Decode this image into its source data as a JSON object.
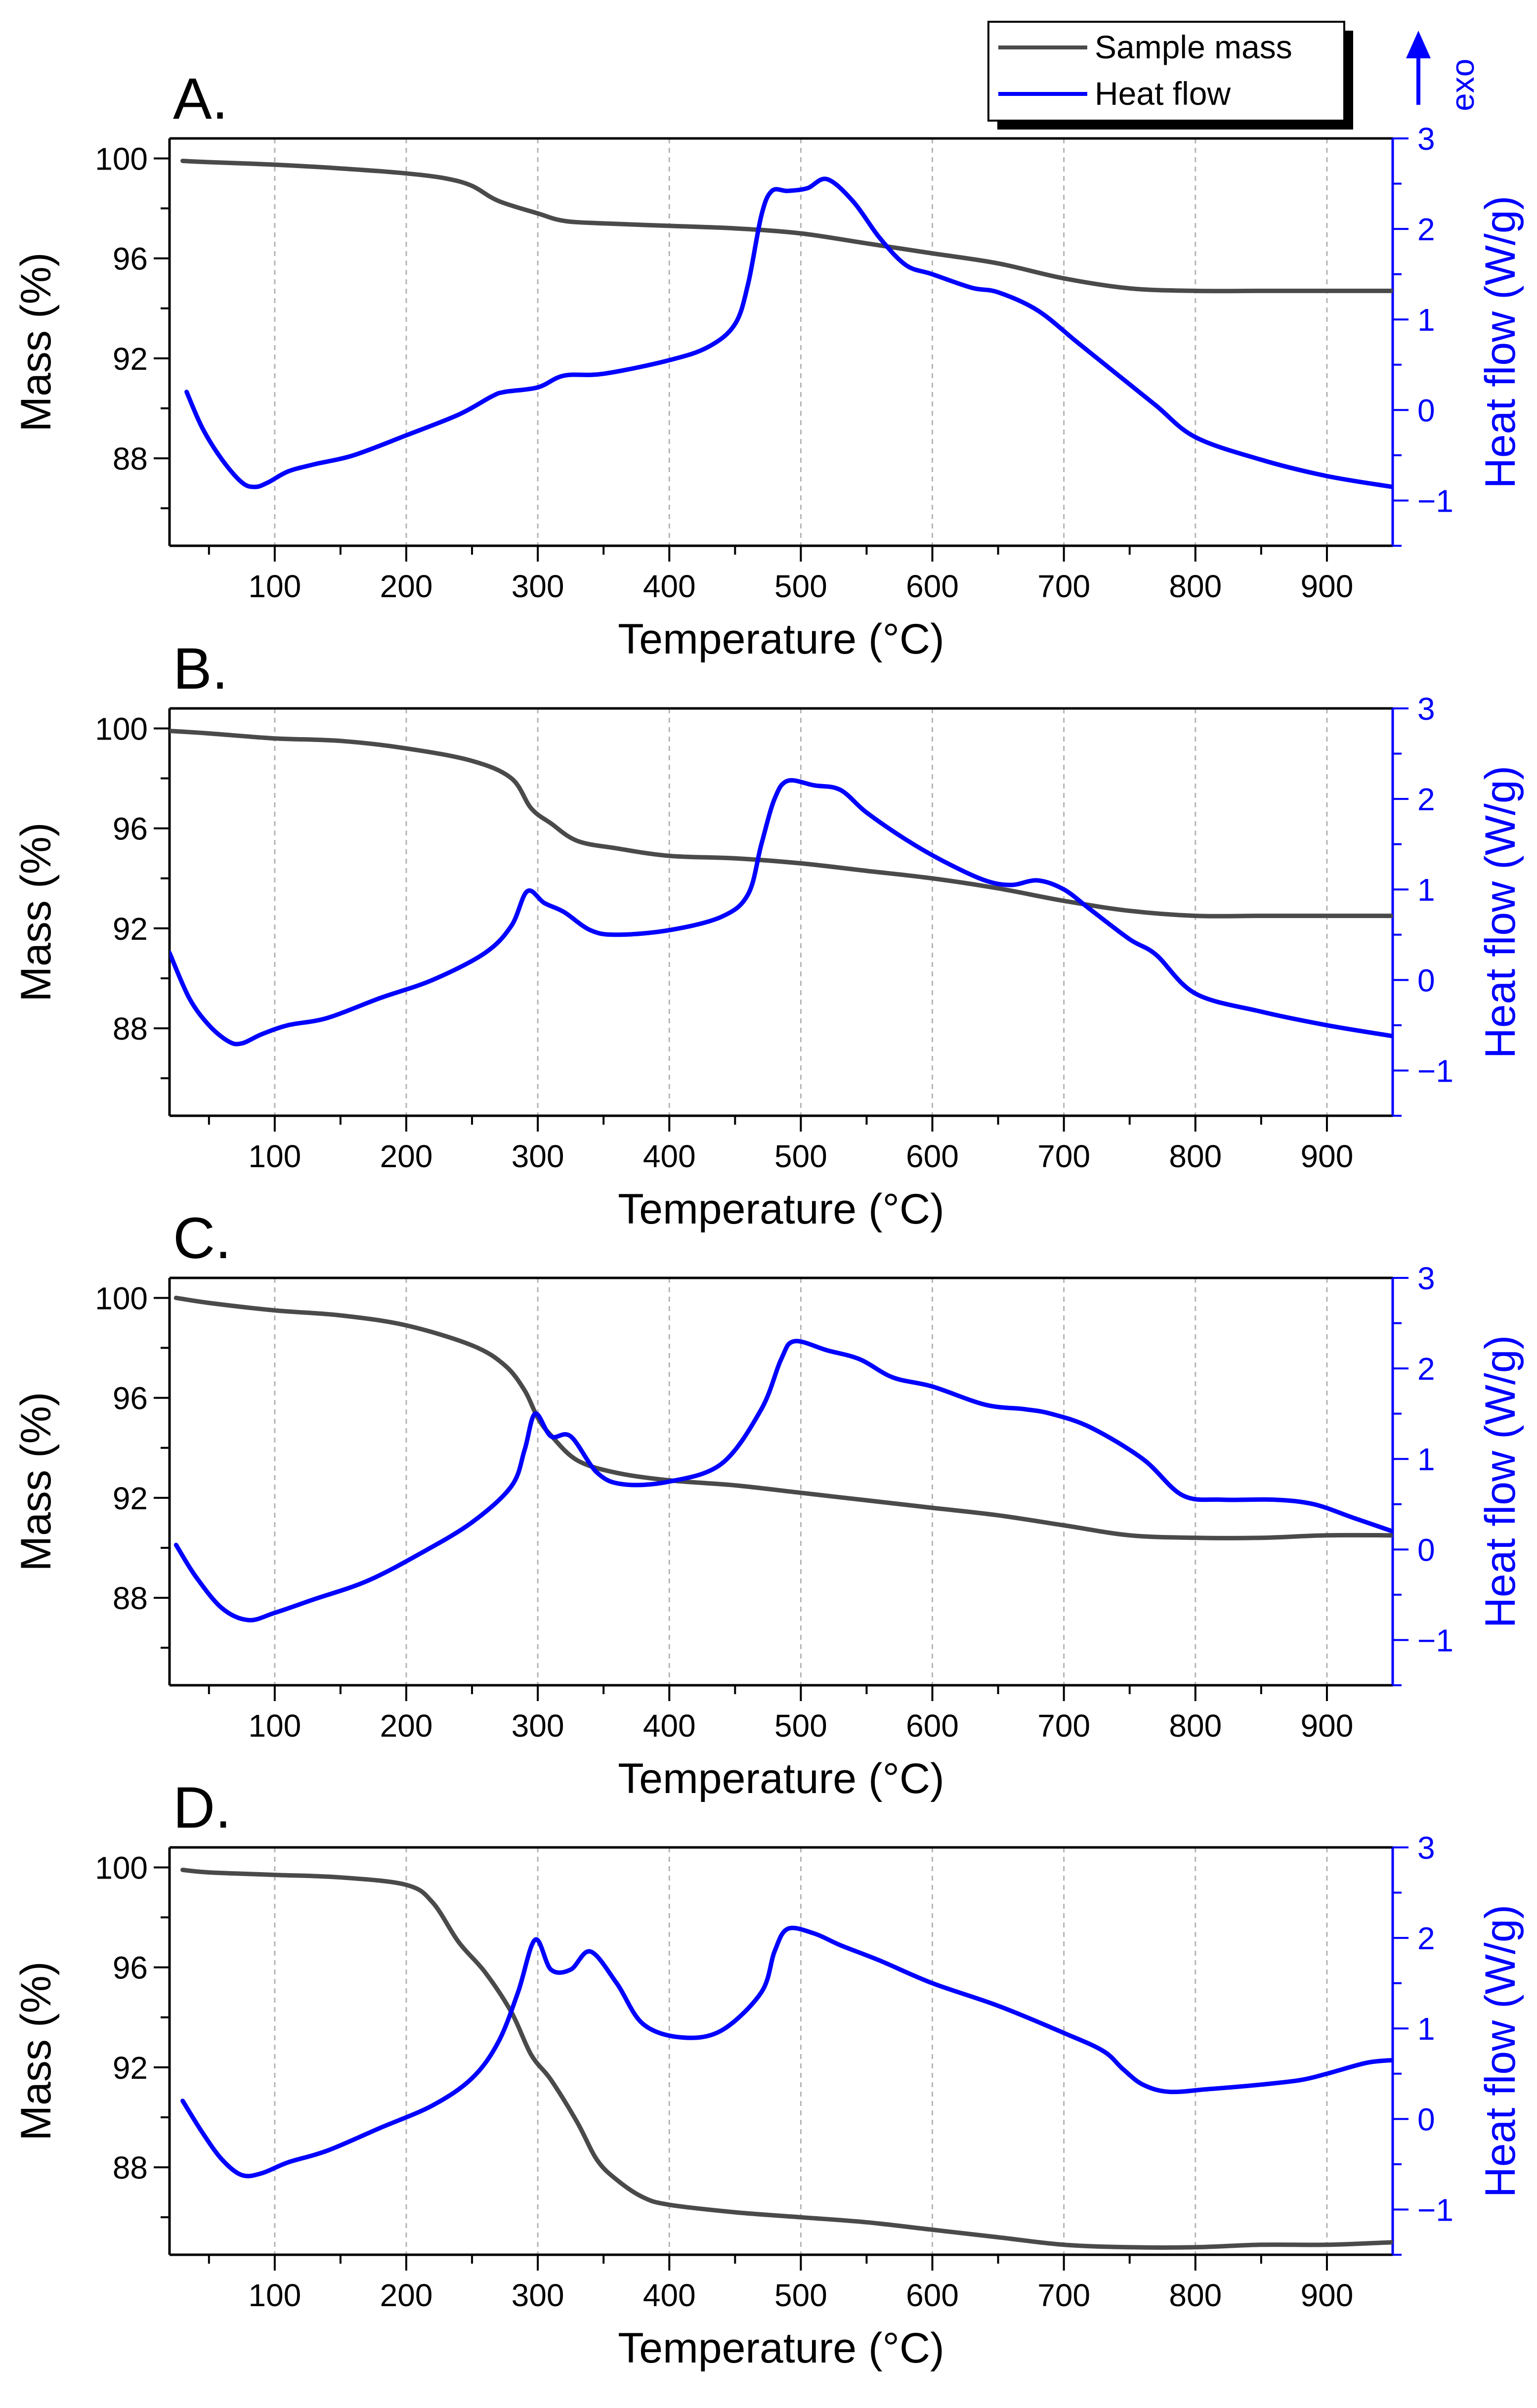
{
  "legend": {
    "items": [
      "Sample mass",
      "Heat flow"
    ],
    "colors": [
      "#4a4a4a",
      "#0000ff"
    ]
  },
  "exo_label": "exo",
  "chart_data": [
    {
      "type": "line",
      "panel_label": "A.",
      "xlabel": "Temperature (°C)",
      "ylabel": "Mass (%)",
      "y2label": "Heat flow (W/g)",
      "xlim": [
        20,
        950
      ],
      "ylim": [
        84.5,
        100.8
      ],
      "y2lim": [
        -1.5,
        3
      ],
      "xticks": [
        100,
        200,
        300,
        400,
        500,
        600,
        700,
        800,
        900
      ],
      "yticks": [
        88,
        92,
        96,
        100
      ],
      "y2ticks": [
        -1,
        0,
        1,
        2,
        3
      ],
      "series": [
        {
          "name": "Sample mass",
          "axis": "left",
          "color": "#4a4a4a",
          "x": [
            30,
            50,
            100,
            150,
            200,
            230,
            250,
            270,
            300,
            320,
            350,
            400,
            450,
            500,
            550,
            600,
            650,
            700,
            750,
            800,
            850,
            900,
            950
          ],
          "y": [
            99.9,
            99.85,
            99.75,
            99.6,
            99.4,
            99.2,
            98.9,
            98.3,
            97.8,
            97.5,
            97.4,
            97.3,
            97.2,
            97.0,
            96.6,
            96.2,
            95.8,
            95.2,
            94.8,
            94.7,
            94.7,
            94.7,
            94.7
          ]
        },
        {
          "name": "Heat flow",
          "axis": "right",
          "color": "#0000ff",
          "x": [
            33,
            45,
            60,
            75,
            85,
            95,
            110,
            130,
            160,
            200,
            240,
            265,
            275,
            300,
            320,
            350,
            400,
            430,
            450,
            460,
            470,
            478,
            490,
            505,
            520,
            540,
            560,
            580,
            600,
            630,
            650,
            680,
            710,
            740,
            770,
            800,
            850,
            900,
            950
          ],
          "y": [
            0.2,
            -0.2,
            -0.55,
            -0.8,
            -0.85,
            -0.8,
            -0.68,
            -0.6,
            -0.5,
            -0.28,
            -0.05,
            0.15,
            0.2,
            0.25,
            0.38,
            0.4,
            0.55,
            0.7,
            0.95,
            1.4,
            2.15,
            2.42,
            2.42,
            2.45,
            2.55,
            2.3,
            1.9,
            1.6,
            1.5,
            1.35,
            1.3,
            1.1,
            0.75,
            0.4,
            0.05,
            -0.3,
            -0.55,
            -0.73,
            -0.85
          ]
        }
      ]
    },
    {
      "type": "line",
      "panel_label": "B.",
      "xlabel": "Temperature (°C)",
      "ylabel": "Mass (%)",
      "y2label": "Heat flow (W/g)",
      "xlim": [
        20,
        950
      ],
      "ylim": [
        84.5,
        100.8
      ],
      "y2lim": [
        -1.5,
        3
      ],
      "xticks": [
        100,
        200,
        300,
        400,
        500,
        600,
        700,
        800,
        900
      ],
      "yticks": [
        88,
        92,
        96,
        100
      ],
      "y2ticks": [
        -1,
        0,
        1,
        2,
        3
      ],
      "series": [
        {
          "name": "Sample mass",
          "axis": "left",
          "color": "#4a4a4a",
          "x": [
            20,
            50,
            100,
            150,
            200,
            250,
            280,
            295,
            310,
            330,
            360,
            400,
            450,
            500,
            550,
            600,
            650,
            700,
            750,
            800,
            850,
            900,
            950
          ],
          "y": [
            99.9,
            99.8,
            99.6,
            99.5,
            99.2,
            98.7,
            98.0,
            96.8,
            96.2,
            95.5,
            95.2,
            94.9,
            94.8,
            94.6,
            94.3,
            94.0,
            93.6,
            93.1,
            92.7,
            92.5,
            92.5,
            92.5,
            92.5
          ]
        },
        {
          "name": "Heat flow",
          "axis": "right",
          "color": "#0000ff",
          "x": [
            20,
            35,
            50,
            65,
            75,
            90,
            110,
            140,
            180,
            220,
            260,
            280,
            292,
            305,
            320,
            340,
            360,
            400,
            440,
            460,
            470,
            480,
            490,
            510,
            530,
            550,
            580,
            610,
            640,
            660,
            680,
            700,
            720,
            750,
            770,
            800,
            850,
            900,
            950
          ],
          "y": [
            0.3,
            -0.2,
            -0.5,
            -0.68,
            -0.7,
            -0.6,
            -0.5,
            -0.42,
            -0.2,
            0.0,
            0.3,
            0.6,
            0.98,
            0.85,
            0.75,
            0.55,
            0.5,
            0.55,
            0.7,
            0.95,
            1.5,
            2.0,
            2.2,
            2.15,
            2.1,
            1.85,
            1.55,
            1.3,
            1.1,
            1.05,
            1.1,
            1.0,
            0.78,
            0.45,
            0.28,
            -0.15,
            -0.35,
            -0.5,
            -0.62
          ]
        }
      ]
    },
    {
      "type": "line",
      "panel_label": "C.",
      "xlabel": "Temperature (°C)",
      "ylabel": "Mass (%)",
      "y2label": "Heat flow (W/g)",
      "xlim": [
        20,
        950
      ],
      "ylim": [
        84.5,
        100.8
      ],
      "y2lim": [
        -1.5,
        3
      ],
      "xticks": [
        100,
        200,
        300,
        400,
        500,
        600,
        700,
        800,
        900
      ],
      "yticks": [
        88,
        92,
        96,
        100
      ],
      "y2ticks": [
        -1,
        0,
        1,
        2,
        3
      ],
      "series": [
        {
          "name": "Sample mass",
          "axis": "left",
          "color": "#4a4a4a",
          "x": [
            25,
            50,
            100,
            150,
            200,
            250,
            275,
            290,
            300,
            310,
            330,
            360,
            400,
            450,
            500,
            550,
            600,
            650,
            700,
            750,
            800,
            850,
            900,
            950
          ],
          "y": [
            100.0,
            99.8,
            99.5,
            99.3,
            98.9,
            98.1,
            97.3,
            96.3,
            95.2,
            94.5,
            93.5,
            93.0,
            92.7,
            92.5,
            92.2,
            91.9,
            91.6,
            91.3,
            90.9,
            90.5,
            90.4,
            90.4,
            90.5,
            90.5
          ]
        },
        {
          "name": "Heat flow",
          "axis": "right",
          "color": "#0000ff",
          "x": [
            25,
            40,
            60,
            80,
            100,
            130,
            170,
            210,
            250,
            280,
            290,
            298,
            310,
            325,
            345,
            365,
            400,
            440,
            470,
            485,
            495,
            520,
            545,
            570,
            600,
            640,
            670,
            690,
            720,
            760,
            790,
            820,
            860,
            890,
            920,
            950
          ],
          "y": [
            0.05,
            -0.3,
            -0.65,
            -0.78,
            -0.7,
            -0.55,
            -0.35,
            -0.05,
            0.3,
            0.7,
            1.1,
            1.5,
            1.25,
            1.25,
            0.85,
            0.72,
            0.75,
            0.95,
            1.55,
            2.1,
            2.3,
            2.2,
            2.1,
            1.9,
            1.8,
            1.6,
            1.55,
            1.5,
            1.35,
            1.0,
            0.6,
            0.55,
            0.55,
            0.5,
            0.35,
            0.2
          ]
        }
      ]
    },
    {
      "type": "line",
      "panel_label": "D.",
      "xlabel": "Temperature (°C)",
      "ylabel": "Mass (%)",
      "y2label": "Heat flow (W/g)",
      "xlim": [
        20,
        950
      ],
      "ylim": [
        84.5,
        100.8
      ],
      "y2lim": [
        -1.5,
        3
      ],
      "xticks": [
        100,
        200,
        300,
        400,
        500,
        600,
        700,
        800,
        900
      ],
      "yticks": [
        88,
        92,
        96,
        100
      ],
      "y2ticks": [
        -1,
        0,
        1,
        2,
        3
      ],
      "series": [
        {
          "name": "Sample mass",
          "axis": "left",
          "color": "#4a4a4a",
          "x": [
            30,
            50,
            100,
            150,
            200,
            220,
            240,
            260,
            280,
            295,
            310,
            330,
            345,
            360,
            380,
            400,
            450,
            500,
            550,
            600,
            650,
            700,
            750,
            800,
            850,
            900,
            950
          ],
          "y": [
            99.9,
            99.8,
            99.7,
            99.6,
            99.3,
            98.6,
            97.0,
            95.8,
            94.2,
            92.5,
            91.5,
            89.8,
            88.3,
            87.5,
            86.8,
            86.5,
            86.2,
            86.0,
            85.8,
            85.5,
            85.2,
            84.9,
            84.8,
            84.8,
            84.9,
            84.9,
            85.0
          ]
        },
        {
          "name": "Heat flow",
          "axis": "right",
          "color": "#0000ff",
          "x": [
            30,
            45,
            60,
            75,
            90,
            110,
            140,
            180,
            220,
            250,
            270,
            285,
            298,
            310,
            325,
            340,
            360,
            380,
            410,
            440,
            470,
            480,
            490,
            510,
            530,
            560,
            600,
            650,
            700,
            730,
            745,
            760,
            780,
            810,
            850,
            880,
            900,
            930,
            950
          ],
          "y": [
            0.2,
            -0.15,
            -0.45,
            -0.62,
            -0.6,
            -0.48,
            -0.35,
            -0.1,
            0.15,
            0.45,
            0.85,
            1.4,
            1.98,
            1.65,
            1.65,
            1.85,
            1.5,
            1.05,
            0.9,
            0.98,
            1.4,
            1.85,
            2.1,
            2.05,
            1.92,
            1.75,
            1.5,
            1.25,
            0.95,
            0.75,
            0.55,
            0.38,
            0.3,
            0.33,
            0.38,
            0.43,
            0.5,
            0.62,
            0.65
          ]
        }
      ]
    }
  ]
}
